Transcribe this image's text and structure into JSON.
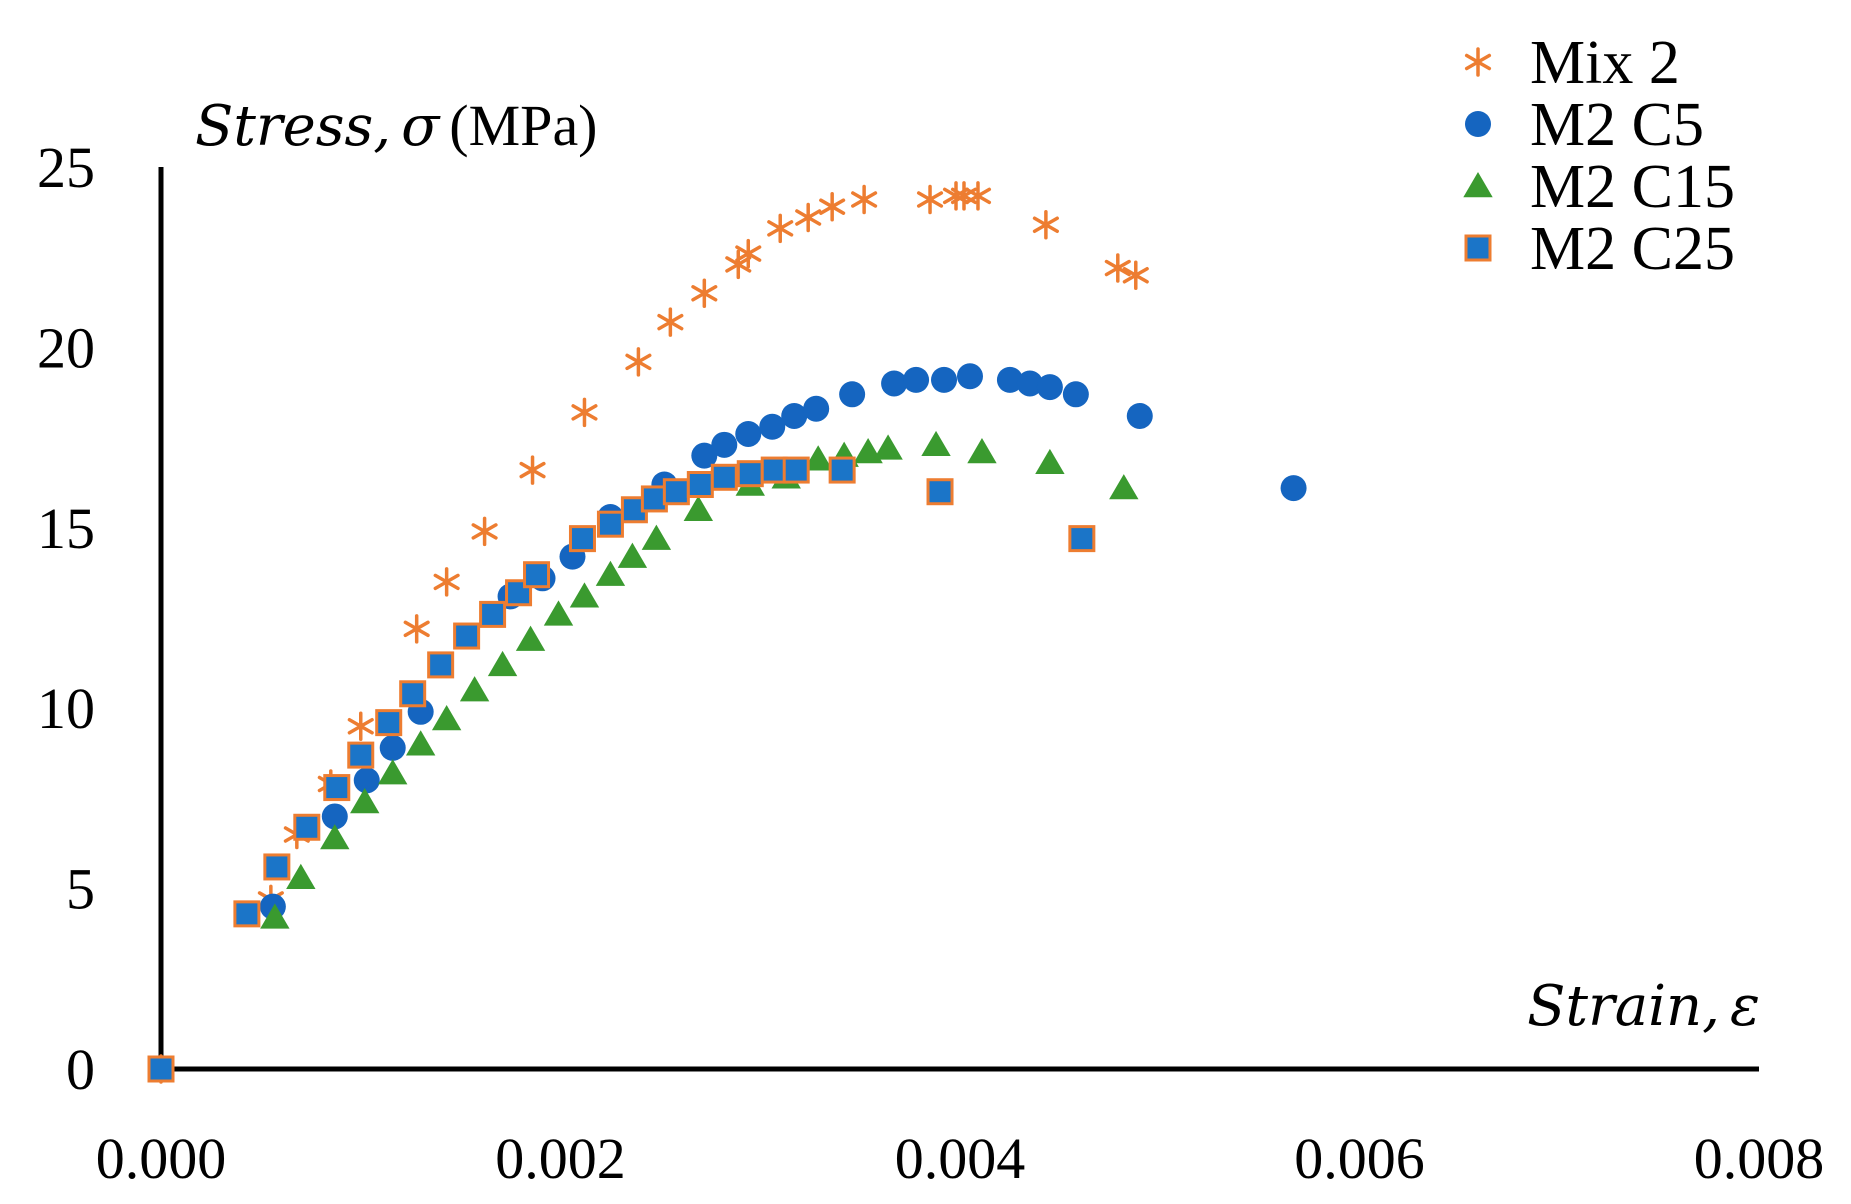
{
  "chart_data": {
    "type": "scatter",
    "title": "",
    "xlabel": {
      "symbol": "Strain,",
      "var": "ε"
    },
    "ylabel": {
      "symbol": "Stress,",
      "var": "σ",
      "unit": "(MPa)"
    },
    "xlim": [
      0,
      0.008
    ],
    "ylim": [
      0,
      25
    ],
    "xticks": [
      "0.000",
      "0.002",
      "0.004",
      "0.006",
      "0.008"
    ],
    "yticks": [
      "0",
      "5",
      "10",
      "15",
      "20",
      "25"
    ],
    "grid": false,
    "legend_position": "top-right",
    "series": [
      {
        "name": "Mix 2",
        "marker": "star",
        "color": "#ED7D31",
        "points": [
          [
            0,
            0
          ],
          [
            0.00055,
            4.7
          ],
          [
            0.00068,
            6.5
          ],
          [
            0.00085,
            7.9
          ],
          [
            0.001,
            9.5
          ],
          [
            0.00128,
            12.2
          ],
          [
            0.00143,
            13.5
          ],
          [
            0.00162,
            14.9
          ],
          [
            0.00186,
            16.6
          ],
          [
            0.00212,
            18.2
          ],
          [
            0.00239,
            19.6
          ],
          [
            0.00255,
            20.7
          ],
          [
            0.00272,
            21.5
          ],
          [
            0.00289,
            22.3
          ],
          [
            0.00294,
            22.6
          ],
          [
            0.0031,
            23.3
          ],
          [
            0.00324,
            23.6
          ],
          [
            0.00336,
            23.9
          ],
          [
            0.00352,
            24.1
          ],
          [
            0.00385,
            24.1
          ],
          [
            0.00398,
            24.2
          ],
          [
            0.00402,
            24.2
          ],
          [
            0.00409,
            24.2
          ],
          [
            0.00443,
            23.4
          ],
          [
            0.00479,
            22.2
          ],
          [
            0.00488,
            22.0
          ]
        ]
      },
      {
        "name": "M2 C5",
        "marker": "circle",
        "color": "#1565C0",
        "points": [
          [
            0.00056,
            4.5
          ],
          [
            0.00087,
            7.0
          ],
          [
            0.00103,
            8.0
          ],
          [
            0.00116,
            8.9
          ],
          [
            0.0013,
            9.9
          ],
          [
            0.00175,
            13.1
          ],
          [
            0.00191,
            13.6
          ],
          [
            0.00206,
            14.2
          ],
          [
            0.00225,
            15.3
          ],
          [
            0.00252,
            16.2
          ],
          [
            0.00272,
            17.0
          ],
          [
            0.00282,
            17.3
          ],
          [
            0.00294,
            17.6
          ],
          [
            0.00306,
            17.8
          ],
          [
            0.00317,
            18.1
          ],
          [
            0.00328,
            18.3
          ],
          [
            0.00346,
            18.7
          ],
          [
            0.00367,
            19.0
          ],
          [
            0.00378,
            19.1
          ],
          [
            0.00392,
            19.1
          ],
          [
            0.00405,
            19.2
          ],
          [
            0.00425,
            19.1
          ],
          [
            0.00435,
            19.0
          ],
          [
            0.00445,
            18.9
          ],
          [
            0.00458,
            18.7
          ],
          [
            0.0049,
            18.1
          ],
          [
            0.00567,
            16.1
          ]
        ]
      },
      {
        "name": "M2 C15",
        "marker": "triangle",
        "color": "#3A9A2F",
        "points": [
          [
            0.00057,
            4.2
          ],
          [
            0.0007,
            5.3
          ],
          [
            0.00087,
            6.4
          ],
          [
            0.00102,
            7.4
          ],
          [
            0.00116,
            8.2
          ],
          [
            0.0013,
            9.0
          ],
          [
            0.00143,
            9.7
          ],
          [
            0.00157,
            10.5
          ],
          [
            0.00171,
            11.2
          ],
          [
            0.00185,
            11.9
          ],
          [
            0.00199,
            12.6
          ],
          [
            0.00212,
            13.1
          ],
          [
            0.00225,
            13.7
          ],
          [
            0.00236,
            14.2
          ],
          [
            0.00248,
            14.7
          ],
          [
            0.00269,
            15.5
          ],
          [
            0.00295,
            16.2
          ],
          [
            0.00313,
            16.4
          ],
          [
            0.00329,
            16.9
          ],
          [
            0.00342,
            17.0
          ],
          [
            0.00354,
            17.1
          ],
          [
            0.00364,
            17.2
          ],
          [
            0.00388,
            17.3
          ],
          [
            0.00411,
            17.1
          ],
          [
            0.00445,
            16.8
          ],
          [
            0.00482,
            16.1
          ]
        ]
      },
      {
        "name": "M2 C25",
        "marker": "square",
        "color": "#1B75C8",
        "stroke": "#ED7D31",
        "points": [
          [
            0,
            0
          ],
          [
            0.00043,
            4.3
          ],
          [
            0.00058,
            5.6
          ],
          [
            0.00073,
            6.7
          ],
          [
            0.00088,
            7.8
          ],
          [
            0.001,
            8.7
          ],
          [
            0.00114,
            9.6
          ],
          [
            0.00126,
            10.4
          ],
          [
            0.0014,
            11.2
          ],
          [
            0.00153,
            12.0
          ],
          [
            0.00166,
            12.6
          ],
          [
            0.00179,
            13.2
          ],
          [
            0.00188,
            13.7
          ],
          [
            0.00211,
            14.7
          ],
          [
            0.00225,
            15.1
          ],
          [
            0.00237,
            15.5
          ],
          [
            0.00247,
            15.8
          ],
          [
            0.00258,
            16.0
          ],
          [
            0.0027,
            16.2
          ],
          [
            0.00282,
            16.4
          ],
          [
            0.00295,
            16.5
          ],
          [
            0.00307,
            16.6
          ],
          [
            0.00318,
            16.6
          ],
          [
            0.00341,
            16.6
          ],
          [
            0.0039,
            16.0
          ],
          [
            0.00461,
            14.7
          ]
        ]
      }
    ]
  }
}
